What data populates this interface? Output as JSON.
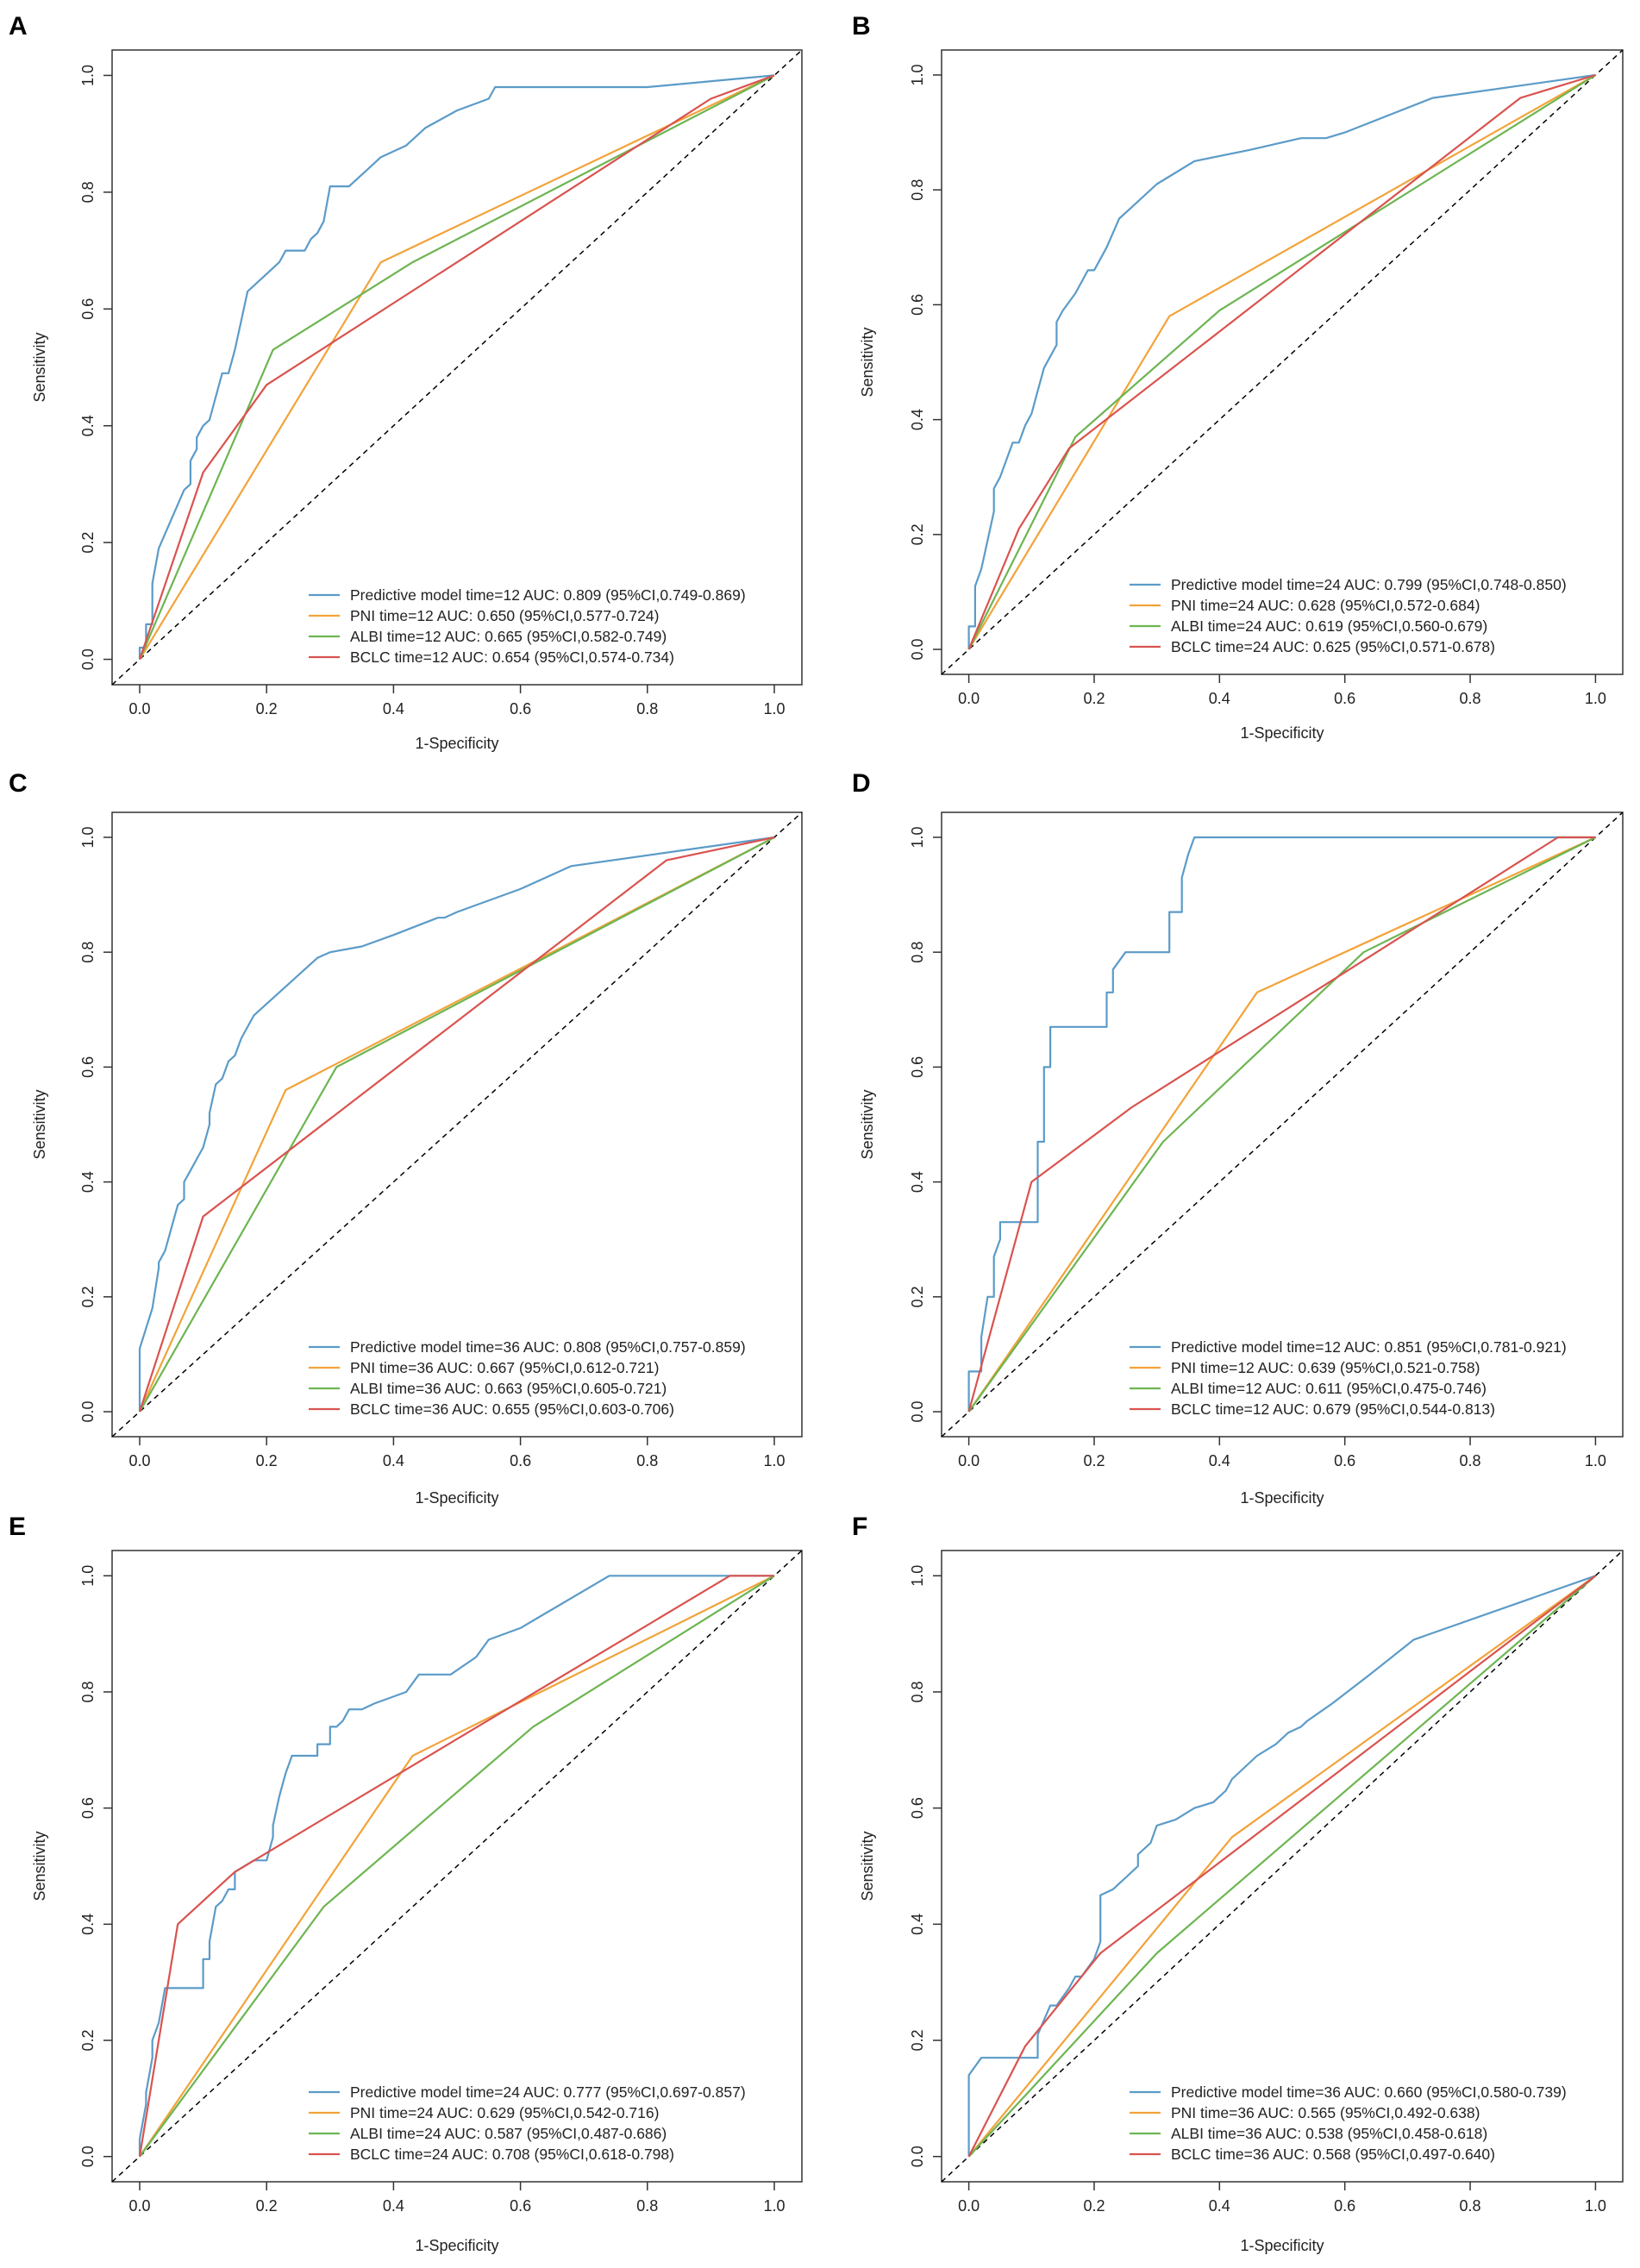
{
  "figure": {
    "colors": {
      "predictive": "#5b9bc8",
      "pni": "#f2a33a",
      "albi": "#6db552",
      "bclc": "#d9534f",
      "reference": "#000000",
      "axis": "#333333"
    }
  },
  "chart_data": [
    {
      "panel": "A",
      "type": "line",
      "xlabel": "1-Specificity",
      "ylabel": "Sensitivity",
      "xlim": [
        0,
        1
      ],
      "ylim": [
        0,
        1
      ],
      "xticks": [
        "0.0",
        "0.2",
        "0.4",
        "0.6",
        "0.8",
        "1.0"
      ],
      "yticks": [
        "0.0",
        "0.2",
        "0.4",
        "0.6",
        "0.8",
        "1.0"
      ],
      "legend_position": "bottom-right",
      "series": [
        {
          "name": "Predictive model time=12 AUC: 0.809 (95%CI,0.749-0.869)",
          "color": "#5b9bc8",
          "x": [
            0,
            0,
            0.01,
            0.01,
            0.02,
            0.02,
            0.03,
            0.05,
            0.07,
            0.08,
            0.08,
            0.09,
            0.09,
            0.1,
            0.11,
            0.12,
            0.13,
            0.14,
            0.15,
            0.16,
            0.17,
            0.18,
            0.2,
            0.22,
            0.23,
            0.24,
            0.26,
            0.27,
            0.28,
            0.29,
            0.3,
            0.31,
            0.33,
            0.34,
            0.36,
            0.38,
            0.4,
            0.42,
            0.45,
            0.5,
            0.55,
            0.56,
            0.8,
            1.0
          ],
          "y": [
            0,
            0.02,
            0.02,
            0.06,
            0.06,
            0.13,
            0.19,
            0.24,
            0.29,
            0.3,
            0.34,
            0.36,
            0.38,
            0.4,
            0.41,
            0.45,
            0.49,
            0.49,
            0.53,
            0.58,
            0.63,
            0.64,
            0.66,
            0.68,
            0.7,
            0.7,
            0.7,
            0.72,
            0.73,
            0.75,
            0.81,
            0.81,
            0.81,
            0.82,
            0.84,
            0.86,
            0.87,
            0.88,
            0.91,
            0.94,
            0.96,
            0.98,
            0.98,
            1.0
          ]
        },
        {
          "name": "PNI time=12 AUC: 0.650 (95%CI,0.577-0.724)",
          "color": "#f2a33a",
          "x": [
            0,
            0.38,
            1.0
          ],
          "y": [
            0,
            0.68,
            1.0
          ]
        },
        {
          "name": "ALBI time=12 AUC: 0.665 (95%CI,0.582-0.749)",
          "color": "#6db552",
          "x": [
            0,
            0.21,
            0.43,
            1.0
          ],
          "y": [
            0,
            0.53,
            0.68,
            1.0
          ]
        },
        {
          "name": "BCLC time=12 AUC: 0.654 (95%CI,0.574-0.734)",
          "color": "#d9534f",
          "x": [
            0,
            0.1,
            0.2,
            0.9,
            1.0
          ],
          "y": [
            0,
            0.32,
            0.47,
            0.96,
            1.0
          ]
        }
      ]
    },
    {
      "panel": "B",
      "type": "line",
      "xlabel": "1-Specificity",
      "ylabel": "Sensitivity",
      "xlim": [
        0,
        1
      ],
      "ylim": [
        0,
        1
      ],
      "xticks": [
        "0.0",
        "0.2",
        "0.4",
        "0.6",
        "0.8",
        "1.0"
      ],
      "yticks": [
        "0.0",
        "0.2",
        "0.4",
        "0.6",
        "0.8",
        "1.0"
      ],
      "legend_position": "bottom-right",
      "series": [
        {
          "name": "Predictive model time=24 AUC: 0.799 (95%CI,0.748-0.850)",
          "color": "#5b9bc8",
          "x": [
            0,
            0,
            0.01,
            0.01,
            0.02,
            0.03,
            0.04,
            0.04,
            0.05,
            0.06,
            0.07,
            0.08,
            0.09,
            0.1,
            0.11,
            0.12,
            0.13,
            0.14,
            0.14,
            0.15,
            0.17,
            0.19,
            0.2,
            0.22,
            0.24,
            0.26,
            0.3,
            0.36,
            0.45,
            0.53,
            0.57,
            0.6,
            0.74,
            1.0
          ],
          "y": [
            0,
            0.04,
            0.04,
            0.11,
            0.14,
            0.19,
            0.24,
            0.28,
            0.3,
            0.33,
            0.36,
            0.36,
            0.39,
            0.41,
            0.45,
            0.49,
            0.51,
            0.53,
            0.57,
            0.59,
            0.62,
            0.66,
            0.66,
            0.7,
            0.75,
            0.77,
            0.81,
            0.85,
            0.87,
            0.89,
            0.89,
            0.9,
            0.96,
            1.0
          ]
        },
        {
          "name": "PNI time=24 AUC: 0.628 (95%CI,0.572-0.684)",
          "color": "#f2a33a",
          "x": [
            0,
            0.32,
            1.0
          ],
          "y": [
            0,
            0.58,
            1.0
          ]
        },
        {
          "name": "ALBI time=24 AUC: 0.619 (95%CI,0.560-0.679)",
          "color": "#6db552",
          "x": [
            0,
            0.17,
            0.4,
            1.0
          ],
          "y": [
            0,
            0.37,
            0.59,
            1.0
          ]
        },
        {
          "name": "BCLC time=24 AUC: 0.625 (95%CI,0.571-0.678)",
          "color": "#d9534f",
          "x": [
            0,
            0.08,
            0.16,
            0.88,
            1.0
          ],
          "y": [
            0,
            0.21,
            0.35,
            0.96,
            1.0
          ]
        }
      ]
    },
    {
      "panel": "C",
      "type": "line",
      "xlabel": "1-Specificity",
      "ylabel": "Sensitivity",
      "xlim": [
        0,
        1
      ],
      "ylim": [
        0,
        1
      ],
      "xticks": [
        "0.0",
        "0.2",
        "0.4",
        "0.6",
        "0.8",
        "1.0"
      ],
      "yticks": [
        "0.0",
        "0.2",
        "0.4",
        "0.6",
        "0.8",
        "1.0"
      ],
      "legend_position": "bottom-right",
      "series": [
        {
          "name": "Predictive model time=36 AUC: 0.808 (95%CI,0.757-0.859)",
          "color": "#5b9bc8",
          "x": [
            0,
            0,
            0.02,
            0.03,
            0.03,
            0.04,
            0.05,
            0.05,
            0.06,
            0.07,
            0.07,
            0.08,
            0.09,
            0.1,
            0.11,
            0.11,
            0.12,
            0.13,
            0.14,
            0.15,
            0.16,
            0.18,
            0.2,
            0.22,
            0.25,
            0.28,
            0.3,
            0.35,
            0.4,
            0.47,
            0.48,
            0.5,
            0.6,
            0.68,
            1.0
          ],
          "y": [
            0,
            0.11,
            0.18,
            0.25,
            0.26,
            0.28,
            0.32,
            0.32,
            0.36,
            0.37,
            0.4,
            0.42,
            0.44,
            0.46,
            0.5,
            0.52,
            0.57,
            0.58,
            0.61,
            0.62,
            0.65,
            0.69,
            0.71,
            0.73,
            0.76,
            0.79,
            0.8,
            0.81,
            0.83,
            0.86,
            0.86,
            0.87,
            0.91,
            0.95,
            1.0
          ]
        },
        {
          "name": "PNI time=36 AUC: 0.667 (95%CI,0.612-0.721)",
          "color": "#f2a33a",
          "x": [
            0,
            0.23,
            1.0
          ],
          "y": [
            0,
            0.56,
            1.0
          ]
        },
        {
          "name": "ALBI time=36 AUC: 0.663 (95%CI,0.605-0.721)",
          "color": "#6db552",
          "x": [
            0,
            0.31,
            1.0
          ],
          "y": [
            0,
            0.6,
            1.0
          ]
        },
        {
          "name": "BCLC time=36 AUC: 0.655 (95%CI,0.603-0.706)",
          "color": "#d9534f",
          "x": [
            0,
            0.1,
            0.83,
            1.0
          ],
          "y": [
            0,
            0.34,
            0.96,
            1.0
          ]
        }
      ]
    },
    {
      "panel": "D",
      "type": "line",
      "xlabel": "1-Specificity",
      "ylabel": "Sensitivity",
      "xlim": [
        0,
        1
      ],
      "ylim": [
        0,
        1
      ],
      "xticks": [
        "0.0",
        "0.2",
        "0.4",
        "0.6",
        "0.8",
        "1.0"
      ],
      "yticks": [
        "0.0",
        "0.2",
        "0.4",
        "0.6",
        "0.8",
        "1.0"
      ],
      "legend_position": "bottom-right",
      "series": [
        {
          "name": "Predictive model time=12 AUC: 0.851 (95%CI,0.781-0.921)",
          "color": "#5b9bc8",
          "x": [
            0,
            0,
            0.02,
            0.02,
            0.03,
            0.04,
            0.04,
            0.05,
            0.05,
            0.06,
            0.08,
            0.11,
            0.11,
            0.12,
            0.12,
            0.13,
            0.13,
            0.16,
            0.22,
            0.22,
            0.23,
            0.23,
            0.25,
            0.27,
            0.3,
            0.32,
            0.32,
            0.33,
            0.34,
            0.34,
            0.35,
            0.36,
            0.38,
            1.0
          ],
          "y": [
            0,
            0.07,
            0.07,
            0.13,
            0.2,
            0.2,
            0.27,
            0.3,
            0.33,
            0.33,
            0.33,
            0.33,
            0.47,
            0.47,
            0.6,
            0.6,
            0.67,
            0.67,
            0.67,
            0.73,
            0.73,
            0.77,
            0.8,
            0.8,
            0.8,
            0.8,
            0.87,
            0.87,
            0.87,
            0.93,
            0.97,
            1.0,
            1.0,
            1.0
          ]
        },
        {
          "name": "PNI time=12 AUC: 0.639 (95%CI,0.521-0.758)",
          "color": "#f2a33a",
          "x": [
            0,
            0.46,
            1.0
          ],
          "y": [
            0,
            0.73,
            1.0
          ]
        },
        {
          "name": "ALBI time=12 AUC: 0.611 (95%CI,0.475-0.746)",
          "color": "#6db552",
          "x": [
            0,
            0.31,
            0.63,
            1.0
          ],
          "y": [
            0,
            0.47,
            0.8,
            1.0
          ]
        },
        {
          "name": "BCLC time=12 AUC: 0.679 (95%CI,0.544-0.813)",
          "color": "#d9534f",
          "x": [
            0,
            0.1,
            0.26,
            0.94,
            1.0
          ],
          "y": [
            0,
            0.4,
            0.53,
            1.0,
            1.0
          ]
        }
      ]
    },
    {
      "panel": "E",
      "type": "line",
      "xlabel": "1-Specificity",
      "ylabel": "Sensitivity",
      "xlim": [
        0,
        1
      ],
      "ylim": [
        0,
        1
      ],
      "xticks": [
        "0.0",
        "0.2",
        "0.4",
        "0.6",
        "0.8",
        "1.0"
      ],
      "yticks": [
        "0.0",
        "0.2",
        "0.4",
        "0.6",
        "0.8",
        "1.0"
      ],
      "legend_position": "bottom-right",
      "series": [
        {
          "name": "Predictive model time=24 AUC: 0.777 (95%CI,0.697-0.857)",
          "color": "#5b9bc8",
          "x": [
            0,
            0,
            0.01,
            0.01,
            0.02,
            0.02,
            0.03,
            0.04,
            0.1,
            0.1,
            0.11,
            0.11,
            0.12,
            0.13,
            0.14,
            0.15,
            0.15,
            0.18,
            0.2,
            0.21,
            0.21,
            0.22,
            0.23,
            0.24,
            0.26,
            0.28,
            0.28,
            0.3,
            0.3,
            0.31,
            0.32,
            0.33,
            0.35,
            0.37,
            0.42,
            0.44,
            0.49,
            0.53,
            0.55,
            0.6,
            0.74,
            1.0
          ],
          "y": [
            0,
            0.03,
            0.09,
            0.11,
            0.17,
            0.2,
            0.23,
            0.29,
            0.29,
            0.34,
            0.34,
            0.37,
            0.43,
            0.44,
            0.46,
            0.46,
            0.49,
            0.51,
            0.51,
            0.55,
            0.57,
            0.62,
            0.66,
            0.69,
            0.69,
            0.69,
            0.71,
            0.71,
            0.74,
            0.74,
            0.75,
            0.77,
            0.77,
            0.78,
            0.8,
            0.83,
            0.83,
            0.86,
            0.89,
            0.91,
            1.0,
            1.0
          ]
        },
        {
          "name": "PNI time=24 AUC: 0.629 (95%CI,0.542-0.716)",
          "color": "#f2a33a",
          "x": [
            0,
            0.43,
            1.0
          ],
          "y": [
            0,
            0.69,
            1.0
          ]
        },
        {
          "name": "ALBI time=24 AUC: 0.587 (95%CI,0.487-0.686)",
          "color": "#6db552",
          "x": [
            0,
            0.29,
            0.62,
            1.0
          ],
          "y": [
            0,
            0.43,
            0.74,
            1.0
          ]
        },
        {
          "name": "BCLC time=24 AUC: 0.708 (95%CI,0.618-0.798)",
          "color": "#d9534f",
          "x": [
            0,
            0.06,
            0.15,
            0.93,
            1.0
          ],
          "y": [
            0,
            0.4,
            0.49,
            1.0,
            1.0
          ]
        }
      ]
    },
    {
      "panel": "F",
      "type": "line",
      "xlabel": "1-Specificity",
      "ylabel": "Sensitivity",
      "xlim": [
        0,
        1
      ],
      "ylim": [
        0,
        1
      ],
      "xticks": [
        "0.0",
        "0.2",
        "0.4",
        "0.6",
        "0.8",
        "1.0"
      ],
      "yticks": [
        "0.0",
        "0.2",
        "0.4",
        "0.6",
        "0.8",
        "1.0"
      ],
      "legend_position": "bottom-right",
      "series": [
        {
          "name": "Predictive model time=36 AUC: 0.660 (95%CI,0.580-0.739)",
          "color": "#5b9bc8",
          "x": [
            0,
            0,
            0.02,
            0.03,
            0.11,
            0.11,
            0.13,
            0.14,
            0.16,
            0.17,
            0.18,
            0.2,
            0.21,
            0.21,
            0.23,
            0.24,
            0.25,
            0.26,
            0.27,
            0.27,
            0.29,
            0.3,
            0.33,
            0.36,
            0.39,
            0.4,
            0.41,
            0.42,
            0.44,
            0.46,
            0.49,
            0.51,
            0.53,
            0.54,
            0.58,
            0.64,
            0.71,
            1.0
          ],
          "y": [
            0,
            0.14,
            0.17,
            0.17,
            0.17,
            0.21,
            0.26,
            0.26,
            0.29,
            0.31,
            0.31,
            0.34,
            0.37,
            0.45,
            0.46,
            0.47,
            0.48,
            0.49,
            0.5,
            0.52,
            0.54,
            0.57,
            0.58,
            0.6,
            0.61,
            0.62,
            0.63,
            0.65,
            0.67,
            0.69,
            0.71,
            0.73,
            0.74,
            0.75,
            0.78,
            0.83,
            0.89,
            1.0
          ]
        },
        {
          "name": "PNI time=36 AUC: 0.565 (95%CI,0.492-0.638)",
          "color": "#f2a33a",
          "x": [
            0,
            0.42,
            1.0
          ],
          "y": [
            0,
            0.55,
            1.0
          ]
        },
        {
          "name": "ALBI time=36 AUC: 0.538 (95%CI,0.458-0.618)",
          "color": "#6db552",
          "x": [
            0,
            0.3,
            1.0
          ],
          "y": [
            0,
            0.35,
            1.0
          ]
        },
        {
          "name": "BCLC time=36 AUC: 0.568 (95%CI,0.497-0.640)",
          "color": "#d9534f",
          "x": [
            0,
            0.09,
            0.21,
            1.0
          ],
          "y": [
            0,
            0.19,
            0.35,
            1.0
          ]
        }
      ]
    }
  ]
}
